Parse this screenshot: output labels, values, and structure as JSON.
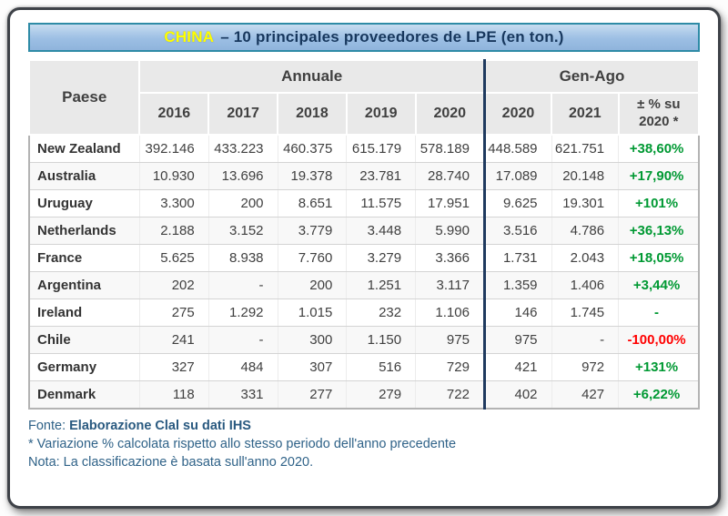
{
  "title": {
    "highlight": "CHINA",
    "rest": "– 10 principales proveedores de LPE (en ton.)"
  },
  "chart_data": {
    "type": "table",
    "title": "CHINA – 10 principales proveedores de LPE (en ton.)",
    "row_header": "Paese",
    "groups": {
      "annual": "Annuale",
      "gen_ago": "Gen-Ago"
    },
    "annual_years": [
      "2016",
      "2017",
      "2018",
      "2019",
      "2020"
    ],
    "gen_ago_years": [
      "2020",
      "2021"
    ],
    "pct_header": "± % su 2020 *",
    "rows": [
      {
        "country": "New Zealand",
        "annual": [
          "392.146",
          "433.223",
          "460.375",
          "615.179",
          "578.189"
        ],
        "gen_ago": [
          "448.589",
          "621.751"
        ],
        "pct": "+38,60%",
        "trend": "up"
      },
      {
        "country": "Australia",
        "annual": [
          "10.930",
          "13.696",
          "19.378",
          "23.781",
          "28.740"
        ],
        "gen_ago": [
          "17.089",
          "20.148"
        ],
        "pct": "+17,90%",
        "trend": "up"
      },
      {
        "country": "Uruguay",
        "annual": [
          "3.300",
          "200",
          "8.651",
          "11.575",
          "17.951"
        ],
        "gen_ago": [
          "9.625",
          "19.301"
        ],
        "pct": "+101%",
        "trend": "up"
      },
      {
        "country": "Netherlands",
        "annual": [
          "2.188",
          "3.152",
          "3.779",
          "3.448",
          "5.990"
        ],
        "gen_ago": [
          "3.516",
          "4.786"
        ],
        "pct": "+36,13%",
        "trend": "up"
      },
      {
        "country": "France",
        "annual": [
          "5.625",
          "8.938",
          "7.760",
          "3.279",
          "3.366"
        ],
        "gen_ago": [
          "1.731",
          "2.043"
        ],
        "pct": "+18,05%",
        "trend": "up"
      },
      {
        "country": "Argentina",
        "annual": [
          "202",
          "-",
          "200",
          "1.251",
          "3.117"
        ],
        "gen_ago": [
          "1.359",
          "1.406"
        ],
        "pct": "+3,44%",
        "trend": "up"
      },
      {
        "country": "Ireland",
        "annual": [
          "275",
          "1.292",
          "1.015",
          "232",
          "1.106"
        ],
        "gen_ago": [
          "146",
          "1.745"
        ],
        "pct": "-",
        "trend": "up"
      },
      {
        "country": "Chile",
        "annual": [
          "241",
          "-",
          "300",
          "1.150",
          "975"
        ],
        "gen_ago": [
          "975",
          "-"
        ],
        "pct": "-100,00%",
        "trend": "down"
      },
      {
        "country": "Germany",
        "annual": [
          "327",
          "484",
          "307",
          "516",
          "729"
        ],
        "gen_ago": [
          "421",
          "972"
        ],
        "pct": "+131%",
        "trend": "up"
      },
      {
        "country": "Denmark",
        "annual": [
          "118",
          "331",
          "277",
          "279",
          "722"
        ],
        "gen_ago": [
          "402",
          "427"
        ],
        "pct": "+6,22%",
        "trend": "up"
      }
    ]
  },
  "footer": {
    "fonte_label": "Fonte:",
    "fonte_bold": "Elaborazione Clal su dati IHS",
    "note_pct": "* Variazione % calcolata rispetto allo stesso periodo dell'anno precedente",
    "note_class": "Nota: La classificazione è basata sull'anno 2020."
  },
  "colors": {
    "positive": "#009933",
    "negative": "#ff0000",
    "title_highlight": "#ffff00",
    "accent_border": "#2e8ba6",
    "divider": "#1f3a5f"
  }
}
